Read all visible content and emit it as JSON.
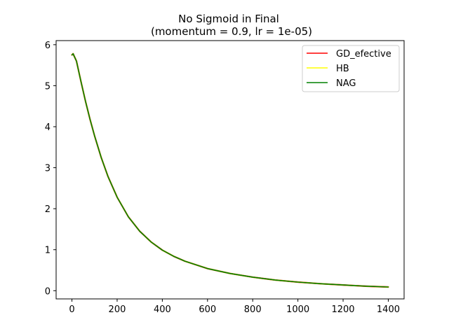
{
  "chart_data": {
    "type": "line",
    "title": "No Sigmoid in Final",
    "subtitle": "(momentum = 0.9, lr = 1e-05)",
    "xlabel": "",
    "ylabel": "",
    "xlim": [
      -70,
      1470
    ],
    "ylim": [
      -0.2,
      6.1
    ],
    "xticks": [
      0,
      200,
      400,
      600,
      800,
      1000,
      1200,
      1400
    ],
    "yticks": [
      0,
      1,
      2,
      3,
      4,
      5,
      6
    ],
    "grid": false,
    "legend_position": "top-right",
    "series": [
      {
        "name": "GD_efective",
        "color": "#ff0000",
        "x": [
          0,
          5,
          10,
          15,
          20,
          30,
          40,
          60,
          80,
          100,
          130,
          160,
          200,
          250,
          300,
          350,
          400,
          450,
          500,
          600,
          700,
          800,
          900,
          1000,
          1100,
          1200,
          1300,
          1400
        ],
        "y": [
          5.75,
          5.78,
          5.72,
          5.66,
          5.6,
          5.35,
          5.1,
          4.62,
          4.18,
          3.78,
          3.24,
          2.78,
          2.28,
          1.8,
          1.45,
          1.19,
          0.99,
          0.84,
          0.72,
          0.54,
          0.42,
          0.33,
          0.26,
          0.21,
          0.17,
          0.14,
          0.11,
          0.09
        ]
      },
      {
        "name": "HB",
        "color": "#ffff00",
        "x": [
          0,
          5,
          10,
          15,
          20,
          30,
          40,
          60,
          80,
          100,
          130,
          160,
          200,
          250,
          300,
          350,
          400,
          450,
          500,
          600,
          700,
          800,
          900,
          1000,
          1100,
          1200,
          1300,
          1400
        ],
        "y": [
          5.75,
          5.78,
          5.72,
          5.66,
          5.6,
          5.35,
          5.1,
          4.62,
          4.18,
          3.78,
          3.24,
          2.78,
          2.28,
          1.8,
          1.45,
          1.19,
          0.99,
          0.84,
          0.72,
          0.54,
          0.42,
          0.33,
          0.26,
          0.21,
          0.17,
          0.14,
          0.11,
          0.09
        ]
      },
      {
        "name": "NAG",
        "color": "#008000",
        "x": [
          0,
          5,
          10,
          15,
          20,
          30,
          40,
          60,
          80,
          100,
          130,
          160,
          200,
          250,
          300,
          350,
          400,
          450,
          500,
          600,
          700,
          800,
          900,
          1000,
          1100,
          1200,
          1300,
          1400
        ],
        "y": [
          5.75,
          5.78,
          5.72,
          5.66,
          5.6,
          5.35,
          5.1,
          4.62,
          4.18,
          3.78,
          3.24,
          2.78,
          2.28,
          1.8,
          1.45,
          1.19,
          0.99,
          0.84,
          0.72,
          0.54,
          0.42,
          0.33,
          0.26,
          0.21,
          0.17,
          0.14,
          0.11,
          0.09
        ]
      }
    ]
  }
}
